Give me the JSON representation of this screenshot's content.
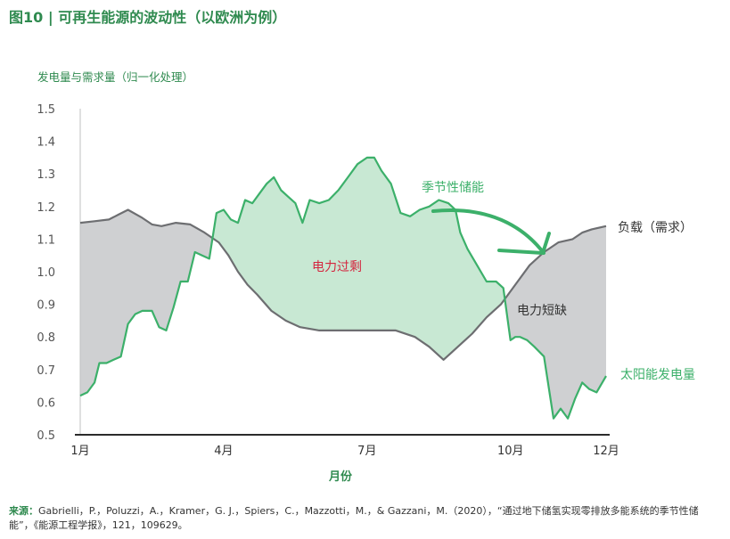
{
  "figure": {
    "title": "图10 | 可再生能源的波动性（以欧洲为例）",
    "source_label": "来源：",
    "source_text": "Gabrielli，P.，Poluzzi，A.，Kramer，G. J.，Spiers，C.，Mazzotti，M.，& Gazzani，M.（2020），“通过地下储氢实现零排放多能系统的季节性储能”，《能源工程学报》，121，109629。"
  },
  "colors": {
    "green": "#2f8a4f",
    "solar_line": "#3cb06a",
    "surplus_fill": "#c8e8d3",
    "shortage_fill": "#cfd0d2",
    "load_line": "#6d6e71",
    "surplus_label": "#d4263f",
    "arrow": "#3cb06a"
  },
  "chart_data": {
    "type": "line",
    "ylabel": "发电量与需求量（归一化处理）",
    "xlabel": "月份",
    "ylim": [
      0.5,
      1.5
    ],
    "yticks": [
      "0.5",
      "0.6",
      "0.7",
      "0.8",
      "0.9",
      "1.0",
      "1.1",
      "1.2",
      "1.3",
      "1.4",
      "1.5"
    ],
    "xlim": [
      1,
      12
    ],
    "xticks": [
      {
        "value": 1,
        "label": "1月"
      },
      {
        "value": 4,
        "label": "4月"
      },
      {
        "value": 7,
        "label": "7月"
      },
      {
        "value": 10,
        "label": "10月"
      },
      {
        "value": 12,
        "label": "12月"
      }
    ],
    "grid": false,
    "series": [
      {
        "name": "负载（需求）",
        "x": [
          1.0,
          1.3,
          1.6,
          1.8,
          2.0,
          2.3,
          2.5,
          2.7,
          3.0,
          3.3,
          3.6,
          3.9,
          4.1,
          4.3,
          4.5,
          4.7,
          5.0,
          5.3,
          5.6,
          6.0,
          6.4,
          6.8,
          7.2,
          7.6,
          8.0,
          8.3,
          8.6,
          8.9,
          9.2,
          9.5,
          9.8,
          10.1,
          10.4,
          10.7,
          11.0,
          11.3,
          11.5,
          11.7,
          12.0
        ],
        "y": [
          1.15,
          1.155,
          1.16,
          1.175,
          1.19,
          1.165,
          1.145,
          1.14,
          1.15,
          1.145,
          1.12,
          1.09,
          1.05,
          1.0,
          0.96,
          0.93,
          0.88,
          0.85,
          0.83,
          0.82,
          0.82,
          0.82,
          0.82,
          0.82,
          0.8,
          0.77,
          0.73,
          0.77,
          0.81,
          0.86,
          0.9,
          0.96,
          1.02,
          1.06,
          1.09,
          1.1,
          1.12,
          1.13,
          1.14
        ]
      },
      {
        "name": "太阳能发电量",
        "x": [
          1.0,
          1.15,
          1.3,
          1.4,
          1.55,
          1.7,
          1.85,
          2.0,
          2.15,
          2.3,
          2.5,
          2.65,
          2.8,
          2.95,
          3.1,
          3.25,
          3.4,
          3.55,
          3.7,
          3.85,
          4.0,
          4.15,
          4.3,
          4.45,
          4.6,
          4.75,
          4.9,
          5.05,
          5.2,
          5.35,
          5.5,
          5.65,
          5.8,
          6.0,
          6.2,
          6.4,
          6.6,
          6.8,
          7.0,
          7.15,
          7.3,
          7.5,
          7.7,
          7.9,
          8.1,
          8.3,
          8.5,
          8.7,
          8.85,
          8.95,
          9.1,
          9.3,
          9.5,
          9.7,
          9.85,
          10.0,
          10.1,
          10.2,
          10.35,
          10.5,
          10.7,
          10.9,
          11.05,
          11.2,
          11.35,
          11.5,
          11.65,
          11.8,
          12.0
        ],
        "y": [
          0.62,
          0.63,
          0.66,
          0.72,
          0.72,
          0.73,
          0.74,
          0.84,
          0.87,
          0.88,
          0.88,
          0.83,
          0.82,
          0.89,
          0.97,
          0.97,
          1.06,
          1.05,
          1.04,
          1.18,
          1.19,
          1.16,
          1.15,
          1.22,
          1.21,
          1.24,
          1.27,
          1.29,
          1.25,
          1.23,
          1.21,
          1.15,
          1.22,
          1.21,
          1.22,
          1.25,
          1.29,
          1.33,
          1.35,
          1.35,
          1.31,
          1.27,
          1.18,
          1.17,
          1.19,
          1.2,
          1.22,
          1.21,
          1.19,
          1.12,
          1.07,
          1.02,
          0.97,
          0.97,
          0.95,
          0.79,
          0.8,
          0.8,
          0.79,
          0.77,
          0.74,
          0.55,
          0.58,
          0.55,
          0.61,
          0.66,
          0.64,
          0.63,
          0.68
        ]
      }
    ],
    "annotations": {
      "surplus": "电力过剩",
      "shortage": "电力短缺",
      "seasonal_storage": "季节性储能",
      "load_label": "负载（需求）",
      "solar_label": "太阳能发电量"
    }
  }
}
